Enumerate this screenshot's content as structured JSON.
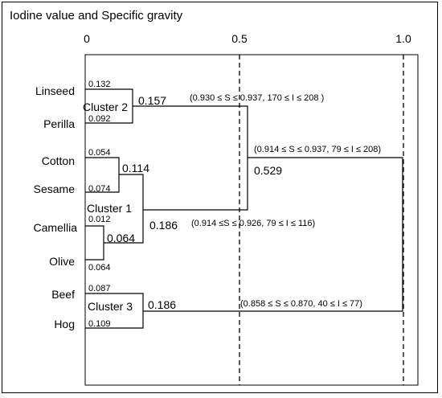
{
  "title": "Iodine value and Specific gravity",
  "axis": {
    "ticks": [
      {
        "value": 0,
        "label": "0"
      },
      {
        "value": 0.5,
        "label": "0.5"
      },
      {
        "value": 1.0,
        "label": "1.0"
      }
    ],
    "dashed_lines_at": [
      0.5,
      1.0
    ]
  },
  "leaves": [
    {
      "name": "Linseed",
      "height": "0.132"
    },
    {
      "name": "Perilla",
      "height": "0.092"
    },
    {
      "name": "Cotton",
      "height": "0.054"
    },
    {
      "name": "Sesame",
      "height": "0.074"
    },
    {
      "name": "Camellia",
      "height": "0.012"
    },
    {
      "name": "Olive",
      "height": "0.064"
    },
    {
      "name": "Beef",
      "height": "0.087"
    },
    {
      "name": "Hog",
      "height": "0.109"
    }
  ],
  "clusters": {
    "cluster2": {
      "label": "Cluster 2",
      "value": "0.157",
      "range": "(0.930 ≤ S ≤ 0.937, 170 ≤ I ≤ 208 )"
    },
    "cluster1": {
      "label": "Cluster 1",
      "value": "0.186",
      "range": "(0.914 ≤S ≤ 0.926, 79 ≤ I ≤ 116)"
    },
    "cluster3": {
      "label": "Cluster 3",
      "value": "0.186",
      "range": "(0.858 ≤ S ≤ 0.870, 40 ≤ I ≤ 77)"
    },
    "cotton_sesame": {
      "value": "0.114"
    },
    "camellia_olive": {
      "value": "0.064"
    },
    "cluster1_2": {
      "value": "0.529",
      "range": "(0.914 ≤ S ≤ 0.937, 79 ≤ I ≤ 208)"
    }
  }
}
